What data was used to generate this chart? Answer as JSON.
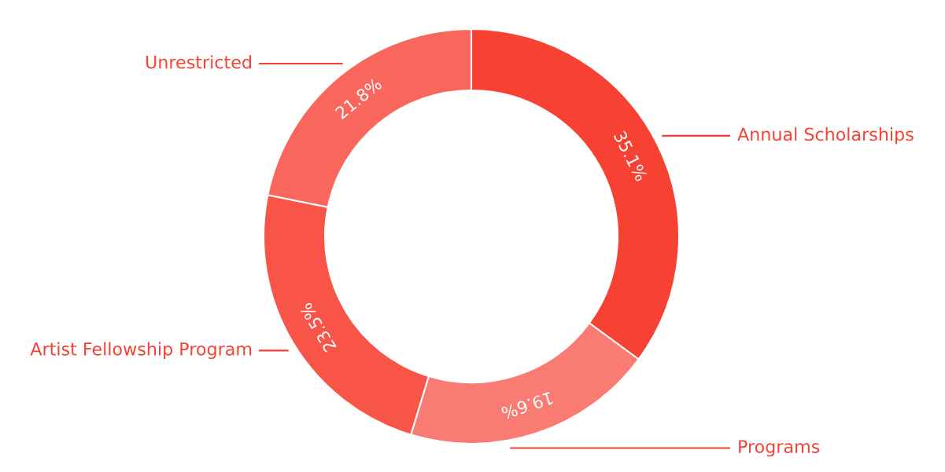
{
  "chart_data": {
    "type": "donut",
    "categories": [
      "Annual Scholarships",
      "Programs",
      "Artist Fellowship Program",
      "Unrestricted"
    ],
    "values": [
      35.1,
      19.6,
      23.5,
      21.8
    ],
    "colors": [
      "#f74133",
      "#f97b71",
      "#f85548",
      "#f9665b"
    ],
    "value_labels": [
      "35.1%",
      "19.6%",
      "23.5%",
      "21.8%"
    ]
  }
}
